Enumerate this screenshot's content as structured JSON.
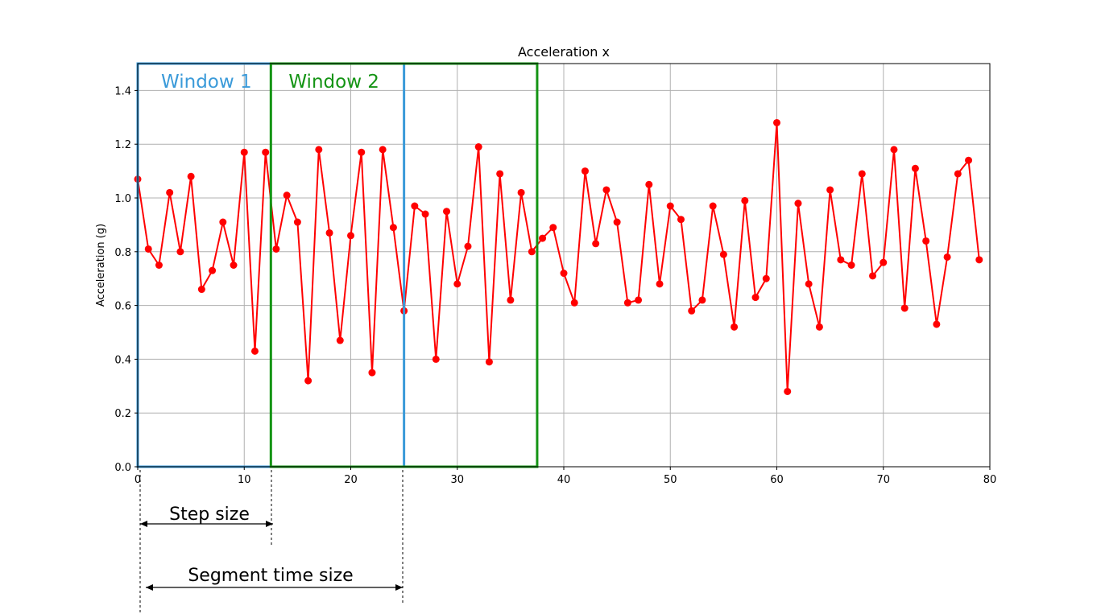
{
  "chart_data": {
    "type": "line",
    "title": "Acceleration x",
    "xlabel": "",
    "ylabel": "Acceleration (g)",
    "xlim": [
      0,
      80
    ],
    "ylim": [
      0.0,
      1.5
    ],
    "xticks": [
      "0",
      "10",
      "20",
      "30",
      "40",
      "50",
      "60",
      "70",
      "80"
    ],
    "yticks": [
      "0.0",
      "0.2",
      "0.4",
      "0.6",
      "0.8",
      "1.0",
      "1.2",
      "1.4"
    ],
    "grid": true,
    "series": [
      {
        "color": "#ff0000",
        "marker": "circle",
        "x": [
          0,
          1,
          2,
          3,
          4,
          5,
          6,
          7,
          8,
          9,
          10,
          11,
          12,
          13,
          14,
          15,
          16,
          17,
          18,
          19,
          20,
          21,
          22,
          23,
          24,
          25,
          26,
          27,
          28,
          29,
          30,
          31,
          32,
          33,
          34,
          35,
          36,
          37,
          38,
          39,
          40,
          41,
          42,
          43,
          44,
          45,
          46,
          47,
          48,
          49,
          50,
          51,
          52,
          53,
          54,
          55,
          56,
          57,
          58,
          59,
          60,
          61,
          62,
          63,
          64,
          65,
          66,
          67,
          68,
          69,
          70,
          71,
          72,
          73,
          74,
          75,
          76,
          77,
          78,
          79
        ],
        "y": [
          1.07,
          0.81,
          0.75,
          1.02,
          0.8,
          1.08,
          0.66,
          0.73,
          0.91,
          0.75,
          1.17,
          0.43,
          1.17,
          0.81,
          1.01,
          0.91,
          0.32,
          1.18,
          0.87,
          0.47,
          0.86,
          1.17,
          0.35,
          1.18,
          0.89,
          0.58,
          0.97,
          0.94,
          0.4,
          0.95,
          0.68,
          0.82,
          1.19,
          0.39,
          1.09,
          0.62,
          1.02,
          0.8,
          0.85,
          0.89,
          0.72,
          0.61,
          1.1,
          0.83,
          1.03,
          0.91,
          0.61,
          0.62,
          1.05,
          0.68,
          0.97,
          0.92,
          0.58,
          0.62,
          0.97,
          0.79,
          0.52,
          0.99,
          0.63,
          0.7,
          1.28,
          0.28,
          0.98,
          0.68,
          0.52,
          1.03,
          0.77,
          0.75,
          1.09,
          0.71,
          0.76,
          1.18,
          0.59,
          1.11,
          0.84,
          0.53,
          0.78,
          1.09,
          1.14,
          0.77
        ]
      }
    ],
    "windows": [
      {
        "label": "Window 1",
        "x_start": 0,
        "x_end": 25,
        "color": "#3a9ad9"
      },
      {
        "label": "Window 2",
        "x_start": 12.5,
        "x_end": 37.5,
        "color": "#149414"
      }
    ],
    "annotations": {
      "step_size": {
        "label": "Step size",
        "x_start": 0,
        "x_end": 12.5
      },
      "segment_time_size": {
        "label": "Segment time size",
        "x_start": 0,
        "x_end": 25
      }
    }
  }
}
